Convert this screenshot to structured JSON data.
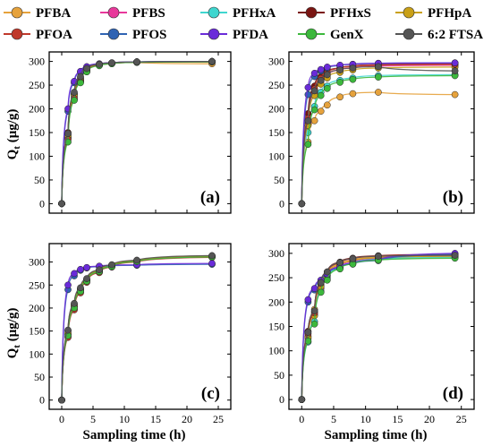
{
  "legend": {
    "entries": [
      {
        "name": "PFBA",
        "color": "#e6a23c"
      },
      {
        "name": "PFBS",
        "color": "#e8389b"
      },
      {
        "name": "PFHxA",
        "color": "#3fd6cf"
      },
      {
        "name": "PFHxS",
        "color": "#7a1512"
      },
      {
        "name": "PFHpA",
        "color": "#c9a017"
      },
      {
        "name": "PFOA",
        "color": "#c0392b"
      },
      {
        "name": "PFOS",
        "color": "#2f63b3"
      },
      {
        "name": "PFDA",
        "color": "#6a2bd9"
      },
      {
        "name": "GenX",
        "color": "#3cb83c"
      },
      {
        "name": "6:2 FTSA",
        "color": "#555555"
      }
    ]
  },
  "axes": {
    "ylabel": "Qt (μg/g)",
    "xlabel": "Sampling time (h)"
  },
  "chart_data": [
    {
      "type": "scatter",
      "panel_label": "(a)",
      "xlim": [
        -2,
        27
      ],
      "ylim": [
        -20,
        320
      ],
      "xticks": [
        0,
        5,
        10,
        15,
        20,
        25
      ],
      "yticks": [
        0,
        50,
        100,
        150,
        200,
        250,
        300
      ],
      "show_xtick_labels": false,
      "show_xlabel": false,
      "show_ylabel": true,
      "x": [
        0,
        1,
        2,
        3,
        4,
        6,
        8,
        12,
        24
      ],
      "series": [
        {
          "name": "PFBA",
          "values": [
            0,
            145,
            225,
            260,
            280,
            293,
            296,
            298,
            295
          ]
        },
        {
          "name": "PFBS",
          "values": [
            0,
            140,
            220,
            258,
            278,
            292,
            296,
            298,
            299
          ]
        },
        {
          "name": "PFHxA",
          "values": [
            0,
            138,
            230,
            262,
            281,
            293,
            296,
            299,
            300
          ]
        },
        {
          "name": "PFHxS",
          "values": [
            0,
            150,
            232,
            265,
            284,
            294,
            297,
            299,
            300
          ]
        },
        {
          "name": "PFHpA",
          "values": [
            0,
            142,
            228,
            260,
            281,
            293,
            296,
            298,
            299
          ]
        },
        {
          "name": "PFOA",
          "values": [
            0,
            135,
            222,
            257,
            279,
            292,
            295,
            298,
            299
          ]
        },
        {
          "name": "PFOS",
          "values": [
            0,
            195,
            255,
            278,
            288,
            294,
            297,
            299,
            300
          ]
        },
        {
          "name": "PFDA",
          "values": [
            0,
            200,
            258,
            279,
            289,
            295,
            297,
            299,
            300
          ]
        },
        {
          "name": "GenX",
          "values": [
            0,
            130,
            218,
            255,
            278,
            291,
            295,
            298,
            299
          ]
        },
        {
          "name": "6:2 FTSA",
          "values": [
            0,
            148,
            235,
            268,
            285,
            294,
            297,
            299,
            300
          ]
        }
      ]
    },
    {
      "type": "scatter",
      "panel_label": "(b)",
      "xlim": [
        -2,
        27
      ],
      "ylim": [
        -20,
        320
      ],
      "xticks": [
        0,
        5,
        10,
        15,
        20,
        25
      ],
      "yticks": [
        0,
        50,
        100,
        150,
        200,
        250,
        300
      ],
      "show_xtick_labels": false,
      "show_xlabel": false,
      "show_ylabel": false,
      "x": [
        0,
        1,
        2,
        3,
        4,
        6,
        8,
        12,
        24
      ],
      "series": [
        {
          "name": "PFBA",
          "values": [
            0,
            130,
            175,
            195,
            208,
            225,
            232,
            235,
            230
          ]
        },
        {
          "name": "PFBS",
          "values": [
            0,
            170,
            235,
            258,
            270,
            282,
            286,
            290,
            292
          ]
        },
        {
          "name": "PFHxA",
          "values": [
            0,
            150,
            205,
            235,
            248,
            260,
            265,
            270,
            272
          ]
        },
        {
          "name": "PFHxS",
          "values": [
            0,
            190,
            248,
            268,
            278,
            286,
            290,
            293,
            295
          ]
        },
        {
          "name": "PFHpA",
          "values": [
            0,
            165,
            228,
            252,
            265,
            277,
            282,
            286,
            288
          ]
        },
        {
          "name": "PFOA",
          "values": [
            0,
            180,
            242,
            264,
            276,
            285,
            289,
            292,
            294
          ]
        },
        {
          "name": "PFOS",
          "values": [
            0,
            230,
            268,
            280,
            286,
            291,
            294,
            296,
            297
          ]
        },
        {
          "name": "PFDA",
          "values": [
            0,
            245,
            275,
            283,
            288,
            292,
            294,
            296,
            297
          ]
        },
        {
          "name": "GenX",
          "values": [
            0,
            125,
            198,
            228,
            243,
            256,
            262,
            267,
            270
          ]
        },
        {
          "name": "6:2 FTSA",
          "values": [
            0,
            175,
            238,
            260,
            272,
            282,
            286,
            289,
            280
          ]
        }
      ]
    },
    {
      "type": "scatter",
      "panel_label": "(c)",
      "xlim": [
        -2,
        27
      ],
      "ylim": [
        -20,
        340
      ],
      "xticks": [
        0,
        5,
        10,
        15,
        20,
        25
      ],
      "yticks": [
        0,
        50,
        100,
        150,
        200,
        250,
        300
      ],
      "show_xtick_labels": true,
      "show_xlabel": true,
      "show_ylabel": true,
      "x": [
        0,
        1,
        2,
        3,
        4,
        6,
        8,
        12,
        24
      ],
      "series": [
        {
          "name": "PFBA",
          "values": [
            0,
            145,
            205,
            240,
            260,
            280,
            292,
            302,
            312
          ]
        },
        {
          "name": "PFBS",
          "values": [
            0,
            138,
            198,
            235,
            258,
            278,
            290,
            301,
            311
          ]
        },
        {
          "name": "PFHxA",
          "values": [
            0,
            142,
            203,
            238,
            260,
            280,
            291,
            302,
            312
          ]
        },
        {
          "name": "PFHxS",
          "values": [
            0,
            150,
            208,
            242,
            262,
            282,
            293,
            303,
            313
          ]
        },
        {
          "name": "PFHpA",
          "values": [
            0,
            144,
            204,
            240,
            261,
            281,
            292,
            302,
            313
          ]
        },
        {
          "name": "PFOA",
          "values": [
            0,
            136,
            196,
            233,
            256,
            277,
            289,
            300,
            310
          ]
        },
        {
          "name": "PFOS",
          "values": [
            0,
            240,
            270,
            282,
            287,
            290,
            292,
            293,
            295
          ]
        },
        {
          "name": "PFDA",
          "values": [
            0,
            250,
            275,
            284,
            288,
            291,
            293,
            294,
            297
          ]
        },
        {
          "name": "GenX",
          "values": [
            0,
            140,
            200,
            236,
            258,
            279,
            290,
            301,
            311
          ]
        },
        {
          "name": "6:2 FTSA",
          "values": [
            0,
            152,
            210,
            244,
            264,
            283,
            294,
            304,
            314
          ]
        }
      ]
    },
    {
      "type": "scatter",
      "panel_label": "(d)",
      "xlim": [
        -2,
        27
      ],
      "ylim": [
        -20,
        320
      ],
      "xticks": [
        0,
        5,
        10,
        15,
        20,
        25
      ],
      "yticks": [
        0,
        50,
        100,
        150,
        200,
        250,
        300
      ],
      "show_xtick_labels": true,
      "show_xlabel": true,
      "show_ylabel": false,
      "x": [
        0,
        1,
        2,
        3,
        4,
        6,
        8,
        12,
        24
      ],
      "series": [
        {
          "name": "PFBA",
          "values": [
            0,
            125,
            185,
            235,
            258,
            278,
            285,
            292,
            295
          ]
        },
        {
          "name": "PFBS",
          "values": [
            0,
            130,
            175,
            228,
            252,
            274,
            283,
            290,
            294
          ]
        },
        {
          "name": "PFHxA",
          "values": [
            0,
            118,
            160,
            222,
            248,
            270,
            280,
            288,
            292
          ]
        },
        {
          "name": "PFHxS",
          "values": [
            0,
            140,
            180,
            240,
            262,
            282,
            290,
            295,
            298
          ]
        },
        {
          "name": "PFHpA",
          "values": [
            0,
            128,
            172,
            232,
            255,
            276,
            284,
            291,
            294
          ]
        },
        {
          "name": "PFOA",
          "values": [
            0,
            135,
            178,
            238,
            260,
            280,
            288,
            294,
            297
          ]
        },
        {
          "name": "PFOS",
          "values": [
            0,
            200,
            225,
            242,
            256,
            270,
            278,
            285,
            298
          ]
        },
        {
          "name": "PFDA",
          "values": [
            0,
            205,
            228,
            245,
            258,
            272,
            280,
            287,
            300
          ]
        },
        {
          "name": "GenX",
          "values": [
            0,
            120,
            155,
            220,
            245,
            268,
            278,
            286,
            290
          ]
        },
        {
          "name": "6:2 FTSA",
          "values": [
            0,
            138,
            182,
            240,
            262,
            281,
            289,
            294,
            296
          ]
        }
      ]
    }
  ]
}
